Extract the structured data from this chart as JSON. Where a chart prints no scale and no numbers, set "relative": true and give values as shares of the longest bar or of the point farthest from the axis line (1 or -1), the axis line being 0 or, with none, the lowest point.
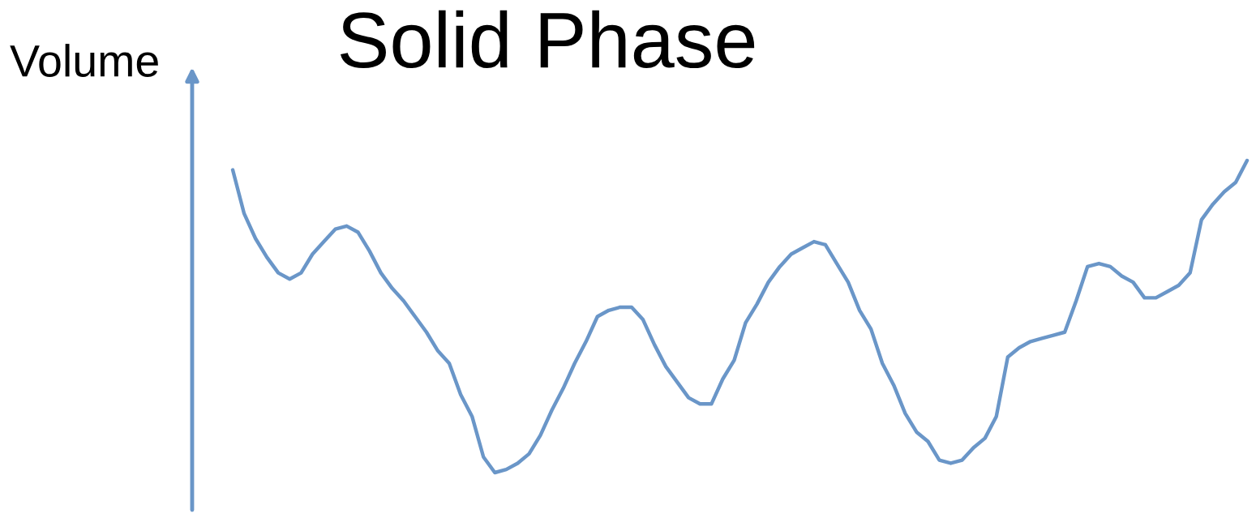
{
  "chart_data": {
    "type": "line",
    "title": "Solid Phase",
    "ylabel": "Volume",
    "relative": true,
    "legend": false,
    "marker": "none",
    "line_style": "solid",
    "categories": [
      null,
      null,
      null,
      null,
      null,
      null,
      null,
      null,
      null,
      null,
      null,
      null,
      null,
      null,
      null,
      null,
      null,
      null,
      null,
      null,
      null,
      null,
      null,
      null,
      null,
      null,
      null,
      null,
      null,
      null,
      null,
      null,
      null,
      null,
      null,
      null,
      null,
      null,
      null,
      null,
      null,
      null,
      null,
      null,
      null,
      null,
      null,
      null,
      null,
      null,
      null,
      null,
      null,
      null,
      null,
      null,
      null,
      null,
      null,
      null,
      null,
      null,
      null,
      null,
      null,
      null,
      null,
      null,
      null,
      null,
      null,
      null,
      null,
      null,
      null,
      null,
      null,
      null,
      null,
      null,
      null,
      null,
      null,
      null,
      null,
      null,
      null,
      null,
      null,
      null
    ],
    "series": [
      {
        "color": "#6a96c8",
        "values": [
          0.97,
          0.83,
          0.75,
          0.69,
          0.64,
          0.62,
          0.64,
          0.7,
          0.74,
          0.78,
          0.79,
          0.77,
          0.71,
          0.64,
          0.59,
          0.55,
          0.5,
          0.45,
          0.39,
          0.35,
          0.25,
          0.18,
          0.05,
          0,
          0.01,
          0.03,
          0.06,
          0.12,
          0.2,
          0.27,
          0.35,
          0.42,
          0.5,
          0.52,
          0.53,
          0.53,
          0.49,
          0.41,
          0.34,
          0.29,
          0.24,
          0.22,
          0.22,
          0.3,
          0.36,
          0.48,
          0.54,
          0.61,
          0.66,
          0.7,
          0.72,
          0.74,
          0.73,
          0.67,
          0.61,
          0.52,
          0.46,
          0.35,
          0.28,
          0.19,
          0.13,
          0.1,
          0.04,
          0.03,
          0.04,
          0.08,
          0.11,
          0.18,
          0.37,
          0.4,
          0.42,
          0.43,
          0.44,
          0.45,
          0.55,
          0.66,
          0.67,
          0.66,
          0.63,
          0.61,
          0.56,
          0.56,
          0.58,
          0.6,
          0.64,
          0.81,
          0.86,
          0.9,
          0.93,
          1
        ]
      }
    ]
  }
}
